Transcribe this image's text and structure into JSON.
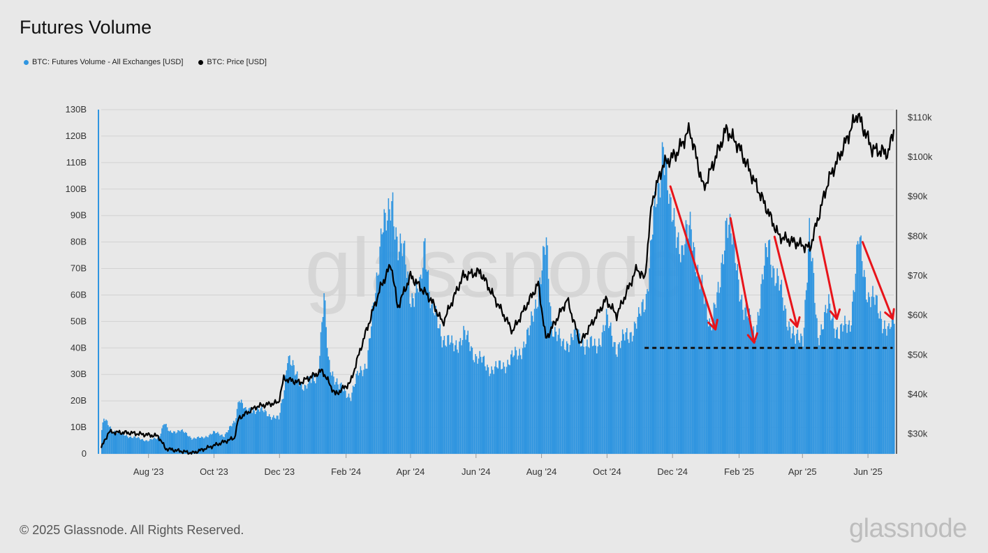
{
  "title": "Futures Volume",
  "legend": [
    {
      "label": "BTC: Futures Volume - All Exchanges [USD]",
      "color": "#2f95e0"
    },
    {
      "label": "BTC: Price [USD]",
      "color": "#000000"
    }
  ],
  "footer": "© 2025 Glassnode. All Rights Reserved.",
  "brand": "glassnode",
  "watermark": "glassnode",
  "chart_data": {
    "type": "bar",
    "x_tick_labels": [
      "Aug '23",
      "Oct '23",
      "Dec '23",
      "Feb '24",
      "Apr '24",
      "Jun '24",
      "Aug '24",
      "Oct '24",
      "Dec '24",
      "Feb '25",
      "Apr '25",
      "Jun '25"
    ],
    "y_left_ticks": [
      "0",
      "10B",
      "20B",
      "30B",
      "40B",
      "50B",
      "60B",
      "70B",
      "80B",
      "90B",
      "100B",
      "110B",
      "120B",
      "130B"
    ],
    "y_left_lim": [
      0,
      130
    ],
    "y_right_ticks": [
      "$30k",
      "$40k",
      "$50k",
      "$60k",
      "$70k",
      "$80k",
      "$90k",
      "$100k",
      "$110k"
    ],
    "y_right_lim": [
      25,
      112
    ],
    "x_range": [
      "2023-06-18",
      "2025-06-25"
    ],
    "series": [
      {
        "name": "BTC: Futures Volume - All Exchanges [USD]",
        "axis": "left",
        "unit": "B USD",
        "color": "#2f95e0",
        "points": [
          [
            "2023-06-18",
            9
          ],
          [
            "2023-06-20",
            13
          ],
          [
            "2023-06-28",
            9
          ],
          [
            "2023-07-10",
            7
          ],
          [
            "2023-07-20",
            6
          ],
          [
            "2023-07-31",
            5
          ],
          [
            "2023-08-10",
            6
          ],
          [
            "2023-08-15",
            12
          ],
          [
            "2023-08-20",
            8
          ],
          [
            "2023-08-30",
            9
          ],
          [
            "2023-09-10",
            6
          ],
          [
            "2023-09-20",
            6
          ],
          [
            "2023-09-30",
            8
          ],
          [
            "2023-10-10",
            7
          ],
          [
            "2023-10-20",
            12
          ],
          [
            "2023-10-24",
            22
          ],
          [
            "2023-10-30",
            16
          ],
          [
            "2023-11-10",
            17
          ],
          [
            "2023-11-20",
            15
          ],
          [
            "2023-11-30",
            13
          ],
          [
            "2023-12-05",
            25
          ],
          [
            "2023-12-08",
            38
          ],
          [
            "2023-12-15",
            30
          ],
          [
            "2023-12-25",
            25
          ],
          [
            "2024-01-05",
            30
          ],
          [
            "2024-01-11",
            58
          ],
          [
            "2024-01-15",
            35
          ],
          [
            "2024-01-25",
            25
          ],
          [
            "2024-02-05",
            22
          ],
          [
            "2024-02-12",
            30
          ],
          [
            "2024-02-20",
            35
          ],
          [
            "2024-02-28",
            60
          ],
          [
            "2024-03-05",
            90
          ],
          [
            "2024-03-10",
            85
          ],
          [
            "2024-03-15",
            95
          ],
          [
            "2024-03-20",
            80
          ],
          [
            "2024-03-25",
            75
          ],
          [
            "2024-04-01",
            60
          ],
          [
            "2024-04-10",
            62
          ],
          [
            "2024-04-14",
            82
          ],
          [
            "2024-04-20",
            55
          ],
          [
            "2024-04-30",
            45
          ],
          [
            "2024-05-10",
            40
          ],
          [
            "2024-05-20",
            45
          ],
          [
            "2024-05-30",
            38
          ],
          [
            "2024-06-10",
            33
          ],
          [
            "2024-06-20",
            32
          ],
          [
            "2024-07-01",
            35
          ],
          [
            "2024-07-10",
            38
          ],
          [
            "2024-07-20",
            45
          ],
          [
            "2024-08-05",
            78
          ],
          [
            "2024-08-10",
            50
          ],
          [
            "2024-08-20",
            40
          ],
          [
            "2024-08-30",
            45
          ],
          [
            "2024-09-10",
            42
          ],
          [
            "2024-09-20",
            40
          ],
          [
            "2024-09-30",
            50
          ],
          [
            "2024-10-10",
            40
          ],
          [
            "2024-10-20",
            45
          ],
          [
            "2024-10-30",
            50
          ],
          [
            "2024-11-06",
            60
          ],
          [
            "2024-11-12",
            85
          ],
          [
            "2024-11-18",
            100
          ],
          [
            "2024-11-22",
            122
          ],
          [
            "2024-11-28",
            90
          ],
          [
            "2024-12-05",
            85
          ],
          [
            "2024-12-10",
            75
          ],
          [
            "2024-12-18",
            88
          ],
          [
            "2024-12-25",
            65
          ],
          [
            "2025-01-05",
            50
          ],
          [
            "2025-01-13",
            60
          ],
          [
            "2025-01-20",
            92
          ],
          [
            "2025-01-27",
            75
          ],
          [
            "2025-02-05",
            55
          ],
          [
            "2025-02-15",
            45
          ],
          [
            "2025-02-28",
            80
          ],
          [
            "2025-03-05",
            70
          ],
          [
            "2025-03-15",
            55
          ],
          [
            "2025-03-25",
            42
          ],
          [
            "2025-04-01",
            45
          ],
          [
            "2025-04-07",
            82
          ],
          [
            "2025-04-15",
            45
          ],
          [
            "2025-04-25",
            55
          ],
          [
            "2025-05-05",
            45
          ],
          [
            "2025-05-15",
            50
          ],
          [
            "2025-05-23",
            80
          ],
          [
            "2025-06-01",
            60
          ],
          [
            "2025-06-10",
            55
          ],
          [
            "2025-06-20",
            45
          ],
          [
            "2025-06-25",
            52
          ]
        ]
      },
      {
        "name": "BTC: Price [USD]",
        "axis": "right",
        "unit": "k USD",
        "color": "#000000",
        "points": [
          [
            "2023-06-18",
            26.5
          ],
          [
            "2023-06-25",
            30.5
          ],
          [
            "2023-07-15",
            30.3
          ],
          [
            "2023-08-10",
            29.5
          ],
          [
            "2023-08-17",
            26.3
          ],
          [
            "2023-09-11",
            25.2
          ],
          [
            "2023-09-30",
            27
          ],
          [
            "2023-10-20",
            29
          ],
          [
            "2023-10-24",
            34
          ],
          [
            "2023-11-10",
            37
          ],
          [
            "2023-11-30",
            38
          ],
          [
            "2023-12-05",
            44
          ],
          [
            "2023-12-20",
            43
          ],
          [
            "2024-01-10",
            46
          ],
          [
            "2024-01-22",
            40
          ],
          [
            "2024-02-05",
            43
          ],
          [
            "2024-02-15",
            52
          ],
          [
            "2024-03-04",
            67
          ],
          [
            "2024-03-14",
            73
          ],
          [
            "2024-03-20",
            62
          ],
          [
            "2024-04-01",
            70
          ],
          [
            "2024-04-20",
            64
          ],
          [
            "2024-05-01",
            58
          ],
          [
            "2024-05-20",
            70
          ],
          [
            "2024-06-05",
            71
          ],
          [
            "2024-06-25",
            61
          ],
          [
            "2024-07-05",
            56
          ],
          [
            "2024-07-29",
            68
          ],
          [
            "2024-08-05",
            54
          ],
          [
            "2024-08-25",
            64
          ],
          [
            "2024-09-06",
            53
          ],
          [
            "2024-09-30",
            64
          ],
          [
            "2024-10-10",
            60
          ],
          [
            "2024-10-29",
            72
          ],
          [
            "2024-11-05",
            69
          ],
          [
            "2024-11-12",
            89
          ],
          [
            "2024-11-22",
            98
          ],
          [
            "2024-12-05",
            101
          ],
          [
            "2024-12-17",
            107
          ],
          [
            "2024-12-30",
            92
          ],
          [
            "2025-01-20",
            107
          ],
          [
            "2025-01-31",
            103
          ],
          [
            "2025-02-25",
            88
          ],
          [
            "2025-03-10",
            80
          ],
          [
            "2025-04-08",
            77
          ],
          [
            "2025-04-25",
            94
          ],
          [
            "2025-05-10",
            103
          ],
          [
            "2025-05-22",
            111
          ],
          [
            "2025-06-05",
            102
          ],
          [
            "2025-06-20",
            101
          ],
          [
            "2025-06-25",
            107
          ]
        ]
      }
    ],
    "annotations": {
      "arrows": [
        {
          "from": [
            "2024-11-29",
            101
          ],
          "to": [
            "2025-01-10",
            47
          ]
        },
        {
          "from": [
            "2025-01-24",
            89
          ],
          "to": [
            "2025-02-15",
            42
          ]
        },
        {
          "from": [
            "2025-03-06",
            82
          ],
          "to": [
            "2025-03-27",
            48
          ]
        },
        {
          "from": [
            "2025-04-17",
            82
          ],
          "to": [
            "2025-05-03",
            51
          ]
        },
        {
          "from": [
            "2025-05-27",
            80
          ],
          "to": [
            "2025-06-24",
            51
          ]
        }
      ],
      "dashed_line": {
        "y": 40,
        "from": "2024-11-05",
        "to": "2025-06-24"
      }
    }
  }
}
